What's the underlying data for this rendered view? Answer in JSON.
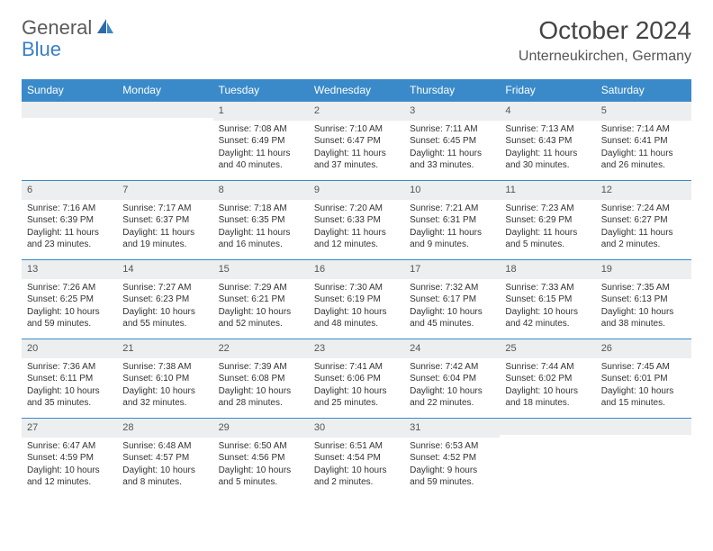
{
  "brand": {
    "part1": "General",
    "part2": "Blue"
  },
  "title": "October 2024",
  "location": "Unterneukirchen, Germany",
  "colors": {
    "header_bg": "#3a8ac9",
    "header_text": "#ffffff",
    "daynum_bg": "#eceeef",
    "border": "#3a8ac9",
    "body_text": "#333333",
    "logo_gray": "#5a5a5a",
    "logo_blue": "#3a7fc4"
  },
  "day_headers": [
    "Sunday",
    "Monday",
    "Tuesday",
    "Wednesday",
    "Thursday",
    "Friday",
    "Saturday"
  ],
  "weeks": [
    [
      {
        "n": "",
        "sr": "",
        "ss": "",
        "dl": ""
      },
      {
        "n": "",
        "sr": "",
        "ss": "",
        "dl": ""
      },
      {
        "n": "1",
        "sr": "Sunrise: 7:08 AM",
        "ss": "Sunset: 6:49 PM",
        "dl": "Daylight: 11 hours and 40 minutes."
      },
      {
        "n": "2",
        "sr": "Sunrise: 7:10 AM",
        "ss": "Sunset: 6:47 PM",
        "dl": "Daylight: 11 hours and 37 minutes."
      },
      {
        "n": "3",
        "sr": "Sunrise: 7:11 AM",
        "ss": "Sunset: 6:45 PM",
        "dl": "Daylight: 11 hours and 33 minutes."
      },
      {
        "n": "4",
        "sr": "Sunrise: 7:13 AM",
        "ss": "Sunset: 6:43 PM",
        "dl": "Daylight: 11 hours and 30 minutes."
      },
      {
        "n": "5",
        "sr": "Sunrise: 7:14 AM",
        "ss": "Sunset: 6:41 PM",
        "dl": "Daylight: 11 hours and 26 minutes."
      }
    ],
    [
      {
        "n": "6",
        "sr": "Sunrise: 7:16 AM",
        "ss": "Sunset: 6:39 PM",
        "dl": "Daylight: 11 hours and 23 minutes."
      },
      {
        "n": "7",
        "sr": "Sunrise: 7:17 AM",
        "ss": "Sunset: 6:37 PM",
        "dl": "Daylight: 11 hours and 19 minutes."
      },
      {
        "n": "8",
        "sr": "Sunrise: 7:18 AM",
        "ss": "Sunset: 6:35 PM",
        "dl": "Daylight: 11 hours and 16 minutes."
      },
      {
        "n": "9",
        "sr": "Sunrise: 7:20 AM",
        "ss": "Sunset: 6:33 PM",
        "dl": "Daylight: 11 hours and 12 minutes."
      },
      {
        "n": "10",
        "sr": "Sunrise: 7:21 AM",
        "ss": "Sunset: 6:31 PM",
        "dl": "Daylight: 11 hours and 9 minutes."
      },
      {
        "n": "11",
        "sr": "Sunrise: 7:23 AM",
        "ss": "Sunset: 6:29 PM",
        "dl": "Daylight: 11 hours and 5 minutes."
      },
      {
        "n": "12",
        "sr": "Sunrise: 7:24 AM",
        "ss": "Sunset: 6:27 PM",
        "dl": "Daylight: 11 hours and 2 minutes."
      }
    ],
    [
      {
        "n": "13",
        "sr": "Sunrise: 7:26 AM",
        "ss": "Sunset: 6:25 PM",
        "dl": "Daylight: 10 hours and 59 minutes."
      },
      {
        "n": "14",
        "sr": "Sunrise: 7:27 AM",
        "ss": "Sunset: 6:23 PM",
        "dl": "Daylight: 10 hours and 55 minutes."
      },
      {
        "n": "15",
        "sr": "Sunrise: 7:29 AM",
        "ss": "Sunset: 6:21 PM",
        "dl": "Daylight: 10 hours and 52 minutes."
      },
      {
        "n": "16",
        "sr": "Sunrise: 7:30 AM",
        "ss": "Sunset: 6:19 PM",
        "dl": "Daylight: 10 hours and 48 minutes."
      },
      {
        "n": "17",
        "sr": "Sunrise: 7:32 AM",
        "ss": "Sunset: 6:17 PM",
        "dl": "Daylight: 10 hours and 45 minutes."
      },
      {
        "n": "18",
        "sr": "Sunrise: 7:33 AM",
        "ss": "Sunset: 6:15 PM",
        "dl": "Daylight: 10 hours and 42 minutes."
      },
      {
        "n": "19",
        "sr": "Sunrise: 7:35 AM",
        "ss": "Sunset: 6:13 PM",
        "dl": "Daylight: 10 hours and 38 minutes."
      }
    ],
    [
      {
        "n": "20",
        "sr": "Sunrise: 7:36 AM",
        "ss": "Sunset: 6:11 PM",
        "dl": "Daylight: 10 hours and 35 minutes."
      },
      {
        "n": "21",
        "sr": "Sunrise: 7:38 AM",
        "ss": "Sunset: 6:10 PM",
        "dl": "Daylight: 10 hours and 32 minutes."
      },
      {
        "n": "22",
        "sr": "Sunrise: 7:39 AM",
        "ss": "Sunset: 6:08 PM",
        "dl": "Daylight: 10 hours and 28 minutes."
      },
      {
        "n": "23",
        "sr": "Sunrise: 7:41 AM",
        "ss": "Sunset: 6:06 PM",
        "dl": "Daylight: 10 hours and 25 minutes."
      },
      {
        "n": "24",
        "sr": "Sunrise: 7:42 AM",
        "ss": "Sunset: 6:04 PM",
        "dl": "Daylight: 10 hours and 22 minutes."
      },
      {
        "n": "25",
        "sr": "Sunrise: 7:44 AM",
        "ss": "Sunset: 6:02 PM",
        "dl": "Daylight: 10 hours and 18 minutes."
      },
      {
        "n": "26",
        "sr": "Sunrise: 7:45 AM",
        "ss": "Sunset: 6:01 PM",
        "dl": "Daylight: 10 hours and 15 minutes."
      }
    ],
    [
      {
        "n": "27",
        "sr": "Sunrise: 6:47 AM",
        "ss": "Sunset: 4:59 PM",
        "dl": "Daylight: 10 hours and 12 minutes."
      },
      {
        "n": "28",
        "sr": "Sunrise: 6:48 AM",
        "ss": "Sunset: 4:57 PM",
        "dl": "Daylight: 10 hours and 8 minutes."
      },
      {
        "n": "29",
        "sr": "Sunrise: 6:50 AM",
        "ss": "Sunset: 4:56 PM",
        "dl": "Daylight: 10 hours and 5 minutes."
      },
      {
        "n": "30",
        "sr": "Sunrise: 6:51 AM",
        "ss": "Sunset: 4:54 PM",
        "dl": "Daylight: 10 hours and 2 minutes."
      },
      {
        "n": "31",
        "sr": "Sunrise: 6:53 AM",
        "ss": "Sunset: 4:52 PM",
        "dl": "Daylight: 9 hours and 59 minutes."
      },
      {
        "n": "",
        "sr": "",
        "ss": "",
        "dl": ""
      },
      {
        "n": "",
        "sr": "",
        "ss": "",
        "dl": ""
      }
    ]
  ]
}
